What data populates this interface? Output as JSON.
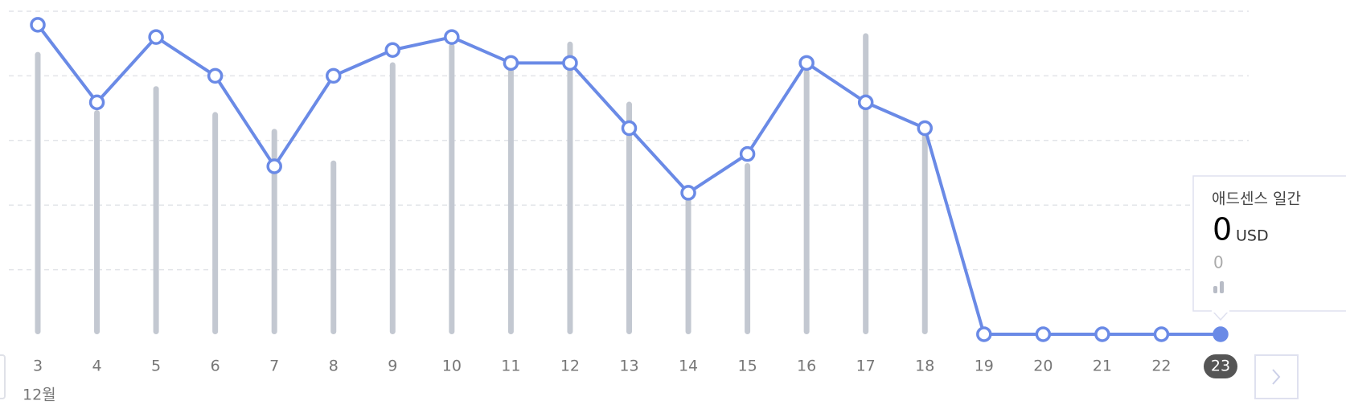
{
  "chart_data": {
    "type": "combo",
    "x": [
      3,
      4,
      5,
      6,
      7,
      8,
      9,
      10,
      11,
      12,
      13,
      14,
      15,
      16,
      17,
      18,
      19,
      20,
      21,
      22,
      23
    ],
    "x_group_label": "12월",
    "highlight": 23,
    "series": [
      {
        "kind": "bar",
        "color": "#c3c8d1",
        "values": [
          4.37,
          3.47,
          3.84,
          3.44,
          3.18,
          2.69,
          4.21,
          4.5,
          4.26,
          4.53,
          3.6,
          2.2,
          2.65,
          4.1,
          4.66,
          3.11,
          0,
          0,
          0,
          0,
          0
        ]
      },
      {
        "kind": "line",
        "color": "#6a8ae6",
        "values": [
          4.79,
          3.59,
          4.6,
          4.0,
          2.6,
          4.0,
          4.4,
          4.6,
          4.2,
          4.2,
          3.19,
          2.19,
          2.79,
          4.2,
          3.59,
          3.19,
          0,
          0,
          0,
          0,
          0
        ]
      }
    ],
    "ylim": [
      0,
      5
    ],
    "yticks": [
      1,
      2,
      3,
      4,
      5
    ],
    "grid": true,
    "tooltip": {
      "title": "애드센스 일간",
      "value": 0,
      "unit": "USD",
      "secondary": 0
    }
  }
}
